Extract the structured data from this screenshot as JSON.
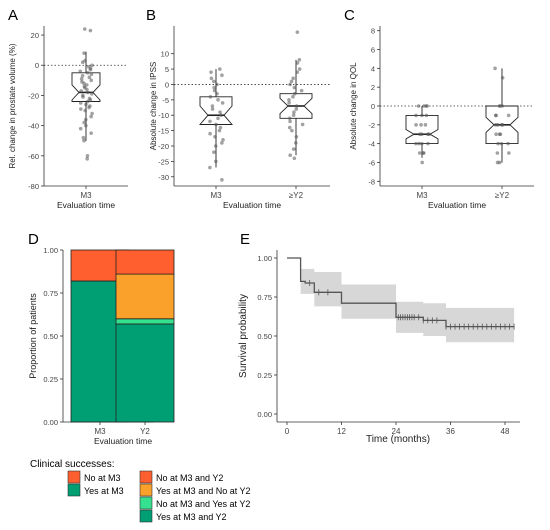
{
  "chart_data": [
    {
      "panel": "A",
      "type": "boxplot",
      "ylabel": "Rel. change in prostate volume (%)",
      "xlabel": "Evaluation time",
      "categories": [
        "M3"
      ],
      "yticks": [
        20,
        0,
        -20,
        -40,
        -60,
        -80
      ],
      "ylim": [
        -80,
        26
      ],
      "reference_line": 0,
      "boxes": [
        {
          "category": "M3",
          "min": -50,
          "q1": -24,
          "median": -18,
          "notch_low": -23,
          "notch_high": -13,
          "q3": -5,
          "max": 9
        }
      ],
      "points": {
        "M3": [
          24,
          23,
          8,
          3,
          2,
          0,
          -1,
          -2,
          -3,
          -4,
          -5,
          -6,
          -7,
          -8,
          -9,
          -10,
          -11,
          -12,
          -13,
          -14,
          -15,
          -16,
          -17,
          -18,
          -19,
          -20,
          -21,
          -22,
          -23,
          -24,
          -25,
          -26,
          -27,
          -28,
          -29,
          -30,
          -32,
          -34,
          -36,
          -38,
          -40,
          -42,
          -45,
          -48,
          -50,
          -60,
          -62
        ]
      }
    },
    {
      "panel": "B",
      "type": "boxplot",
      "ylabel": "Absolute change in IPSS",
      "xlabel": "Evaluation time",
      "categories": [
        "M3",
        "≥Y2"
      ],
      "yticks": [
        10,
        5,
        0,
        -5,
        -10,
        -15,
        -20,
        -25,
        -30
      ],
      "ylim": [
        -33,
        19
      ],
      "reference_line": 0,
      "boxes": [
        {
          "category": "M3",
          "min": -27,
          "q1": -13,
          "median": -10,
          "notch_low": -13,
          "notch_high": -7,
          "q3": -4,
          "max": 5
        },
        {
          "category": "≥Y2",
          "min": -23,
          "q1": -11,
          "median": -7,
          "notch_low": -9.5,
          "notch_high": -4.5,
          "q3": -3,
          "max": 8
        }
      ],
      "points": {
        "M3": [
          5,
          4,
          3,
          2,
          1,
          0,
          -1,
          -2,
          -3,
          -4,
          -5,
          -6,
          -7,
          -8,
          -9,
          -10,
          -11,
          -12,
          -13,
          -14,
          -15,
          -16,
          -17,
          -18,
          -19,
          -20,
          -22,
          -25,
          -27,
          -31
        ],
        "≥Y2": [
          17,
          8,
          7,
          5,
          4,
          2,
          1,
          0,
          -1,
          -2,
          -3,
          -4,
          -5,
          -6,
          -7,
          -8,
          -9,
          -10,
          -11,
          -12,
          -13,
          -14,
          -15,
          -17,
          -19,
          -21,
          -23,
          -24
        ]
      }
    },
    {
      "panel": "C",
      "type": "boxplot",
      "ylabel": "Absolute change in QOL",
      "xlabel": "Evaluation time",
      "categories": [
        "M3",
        "≥Y2"
      ],
      "yticks": [
        8,
        6,
        4,
        2,
        0,
        -2,
        -4,
        -6,
        -8
      ],
      "ylim": [
        -8.5,
        8.5
      ],
      "reference_line": 0,
      "boxes": [
        {
          "category": "M3",
          "min": -5.5,
          "q1": -4,
          "median": -3,
          "notch_low": -3.5,
          "notch_high": -2.5,
          "q3": -1,
          "max": 0
        },
        {
          "category": "≥Y2",
          "min": -6,
          "q1": -4,
          "median": -2,
          "notch_low": -2.8,
          "notch_high": -1.2,
          "q3": 0,
          "max": 4
        }
      ],
      "points": {
        "M3": [
          0,
          0,
          0,
          0,
          -1,
          -1,
          -1,
          -2,
          -2,
          -2,
          -3,
          -3,
          -3,
          -3,
          -4,
          -4,
          -4,
          -4,
          -5,
          -5,
          -5,
          -6
        ],
        "≥Y2": [
          4,
          3,
          0,
          0,
          0,
          -1,
          -1,
          -1,
          -2,
          -2,
          -2,
          -2,
          -3,
          -3,
          -3,
          -4,
          -4,
          -4,
          -5,
          -5,
          -6,
          -6
        ]
      }
    },
    {
      "panel": "D",
      "type": "bar",
      "stacked": true,
      "ylabel": "Proportion of patients",
      "xlabel": "Evaluation time",
      "categories": [
        "M3",
        "Y2"
      ],
      "yticks": [
        1.0,
        0.75,
        0.5,
        0.25,
        0.0
      ],
      "ytick_labels": [
        "1.00",
        "0.75",
        "0.50",
        "0.25",
        "0.00"
      ],
      "ylim": [
        0,
        1
      ],
      "bars": [
        {
          "category": "M3",
          "segments": [
            {
              "name": "Yes at M3",
              "value": 0.82,
              "color": "#009E73"
            },
            {
              "name": "No at M3",
              "value": 0.18,
              "color": "#FF5F2E"
            }
          ]
        },
        {
          "category": "Y2",
          "segments": [
            {
              "name": "Yes at M3 and Y2",
              "value": 0.57,
              "color": "#009E73"
            },
            {
              "name": "No at M3 and Yes at Y2",
              "value": 0.03,
              "color": "#35E08F"
            },
            {
              "name": "Yes at M3 and No at Y2",
              "value": 0.26,
              "color": "#F9A12B"
            },
            {
              "name": "No at M3 and Y2",
              "value": 0.14,
              "color": "#FF5F2E"
            }
          ]
        }
      ]
    },
    {
      "panel": "E",
      "type": "line",
      "subtype": "kaplan-meier",
      "ylabel": "Survival probability",
      "xlabel": "Time (months)",
      "xticks": [
        0,
        12,
        24,
        36,
        48
      ],
      "yticks": [
        1.0,
        0.75,
        0.5,
        0.25,
        0.0
      ],
      "ytick_labels": [
        "1.00",
        "0.75",
        "0.50",
        "0.25",
        "0.00"
      ],
      "xlim": [
        0,
        52
      ],
      "ylim": [
        0,
        1
      ],
      "steps": [
        [
          0,
          1.0
        ],
        [
          3,
          1.0
        ],
        [
          3,
          0.85
        ],
        [
          4,
          0.84
        ],
        [
          6,
          0.78
        ],
        [
          12,
          0.71
        ],
        [
          24,
          0.62
        ],
        [
          30,
          0.6
        ],
        [
          35,
          0.56
        ],
        [
          50,
          0.56
        ]
      ],
      "ci_upper": [
        [
          0,
          1.0
        ],
        [
          3,
          1.0
        ],
        [
          3,
          0.93
        ],
        [
          6,
          0.91
        ],
        [
          12,
          0.83
        ],
        [
          24,
          0.72
        ],
        [
          30,
          0.71
        ],
        [
          35,
          0.68
        ],
        [
          50,
          0.68
        ]
      ],
      "ci_lower": [
        [
          0,
          1.0
        ],
        [
          3,
          1.0
        ],
        [
          3,
          0.77
        ],
        [
          6,
          0.69
        ],
        [
          12,
          0.61
        ],
        [
          24,
          0.52
        ],
        [
          30,
          0.5
        ],
        [
          35,
          0.46
        ],
        [
          50,
          0.46
        ]
      ],
      "censors": [
        5,
        7,
        9,
        24.5,
        25,
        25.5,
        26,
        26.5,
        27,
        27.5,
        28,
        29,
        30,
        31,
        32,
        33,
        35,
        36,
        37,
        38,
        39,
        40,
        41,
        42,
        43,
        44,
        45,
        46,
        47,
        48,
        49,
        50
      ]
    }
  ],
  "panels": {
    "A": "A",
    "B": "B",
    "C": "C",
    "D": "D",
    "E": "E"
  },
  "legend": {
    "title": "Clinical successes:",
    "left": [
      {
        "label": "No at M3",
        "color": "#FF5F2E"
      },
      {
        "label": "Yes at M3",
        "color": "#009E73"
      }
    ],
    "right": [
      {
        "label": "No at M3 and Y2",
        "color": "#FF5F2E"
      },
      {
        "label": "Yes at M3 and No at Y2",
        "color": "#F9A12B"
      },
      {
        "label": "No at M3 and Yes at Y2",
        "color": "#35E08F"
      },
      {
        "label": "Yes at M3 and Y2",
        "color": "#009E73"
      }
    ]
  },
  "colors": {
    "axis": "#333333",
    "point": "#555555",
    "ci": "#d3d3d3",
    "km_line": "#555555"
  }
}
